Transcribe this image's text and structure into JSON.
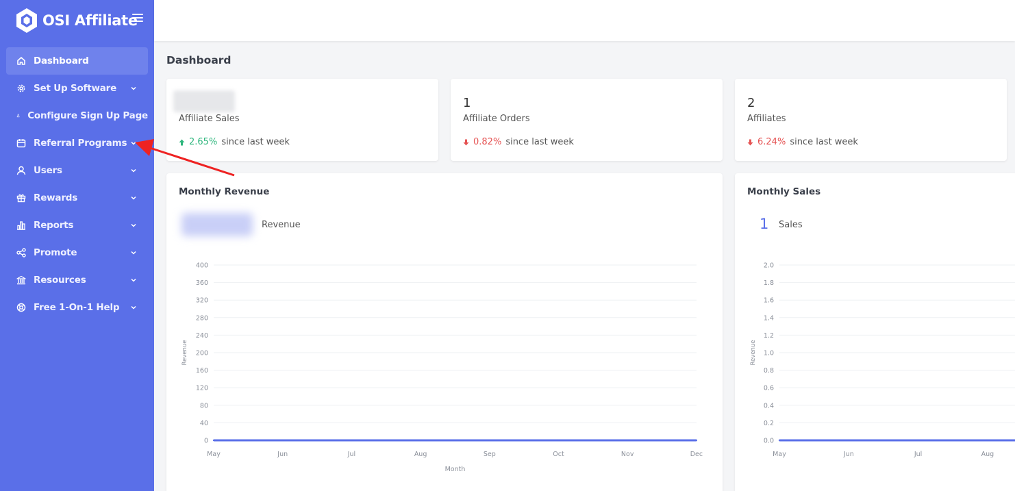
{
  "brand": {
    "name": "OSI Affiliate"
  },
  "sidebar": {
    "items": [
      {
        "label": "Dashboard",
        "icon": "home-icon",
        "active": true,
        "has_submenu": false
      },
      {
        "label": "Set Up Software",
        "icon": "gear-icon",
        "active": false,
        "has_submenu": true
      },
      {
        "label": "Configure Sign Up Page",
        "icon": "flask-icon",
        "active": false,
        "has_submenu": false
      },
      {
        "label": "Referral Programs",
        "icon": "calendar-icon",
        "active": false,
        "has_submenu": true
      },
      {
        "label": "Users",
        "icon": "user-icon",
        "active": false,
        "has_submenu": true
      },
      {
        "label": "Rewards",
        "icon": "gift-icon",
        "active": false,
        "has_submenu": true
      },
      {
        "label": "Reports",
        "icon": "bar-chart-icon",
        "active": false,
        "has_submenu": true
      },
      {
        "label": "Promote",
        "icon": "share-icon",
        "active": false,
        "has_submenu": true
      },
      {
        "label": "Resources",
        "icon": "bank-icon",
        "active": false,
        "has_submenu": true
      },
      {
        "label": "Free 1-On-1 Help",
        "icon": "lifebuoy-icon",
        "active": false,
        "has_submenu": true
      }
    ]
  },
  "page": {
    "title": "Dashboard"
  },
  "stats": [
    {
      "value": "",
      "label": "Affiliate Sales",
      "trend": "up",
      "pct": "2.65%",
      "since": "since last week"
    },
    {
      "value": "1",
      "label": "Affiliate Orders",
      "trend": "down",
      "pct": "0.82%",
      "since": "since last week"
    },
    {
      "value": "2",
      "label": "Affiliates",
      "trend": "down",
      "pct": "6.24%",
      "since": "since last week"
    }
  ],
  "revenue_card": {
    "title": "Monthly Revenue",
    "metric_label": "Revenue"
  },
  "sales_card": {
    "title": "Monthly Sales",
    "metric_value": "1",
    "metric_label": "Sales"
  },
  "colors": {
    "sidebar": "#5a6fe8",
    "accent": "#5a6fe8",
    "up": "#2eb67d",
    "down": "#e55353",
    "annotation": "#ee2222"
  },
  "chart_data": [
    {
      "type": "line",
      "title": "",
      "xlabel": "Month",
      "ylabel": "Revenue",
      "categories": [
        "May",
        "Jun",
        "Jul",
        "Aug",
        "Sep",
        "Oct",
        "Nov",
        "Dec"
      ],
      "yticks": [
        "0",
        "40",
        "80",
        "120",
        "160",
        "200",
        "240",
        "280",
        "320",
        "360",
        "400"
      ],
      "ylim": [
        0,
        400
      ],
      "series": [
        {
          "values": [
            0,
            0,
            0,
            0,
            0,
            0,
            0,
            0
          ]
        }
      ],
      "grid": true
    },
    {
      "type": "line",
      "title": "",
      "xlabel": "",
      "ylabel": "Revenue",
      "categories": [
        "May",
        "Jun",
        "Jul",
        "Aug"
      ],
      "yticks": [
        "0.0",
        "0.2",
        "0.4",
        "0.6",
        "0.8",
        "1.0",
        "1.2",
        "1.4",
        "1.6",
        "1.8",
        "2.0"
      ],
      "ylim": [
        0,
        2
      ],
      "series": [
        {
          "values": [
            0,
            0,
            0,
            0
          ]
        }
      ],
      "grid": true
    }
  ]
}
